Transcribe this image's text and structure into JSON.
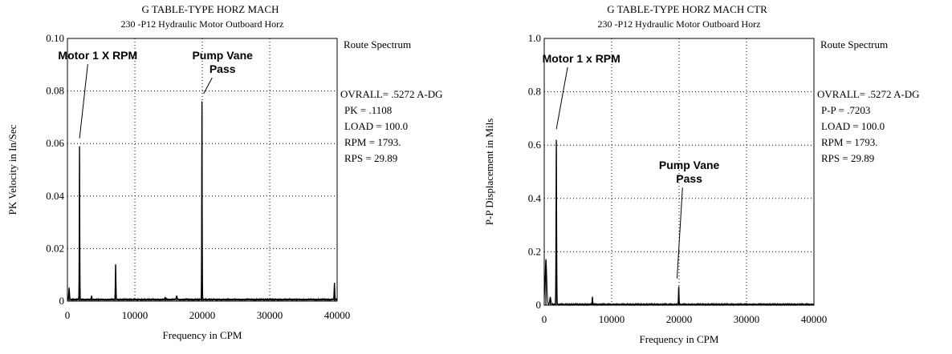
{
  "colors": {
    "line": "#000000",
    "grid": "#000000",
    "background": "#ffffff"
  },
  "chart_data": [
    {
      "type": "line",
      "title": "G      TABLE-TYPE HORZ MACH",
      "subtitle": "230        -P12   Hydraulic Motor Outboard Horz",
      "xlabel": "Frequency in CPM",
      "ylabel": "PK Velocity in In/Sec",
      "xlim": [
        0,
        40000
      ],
      "ylim": [
        0,
        0.1
      ],
      "xticks": [
        "0",
        "10000",
        "20000",
        "30000",
        "40000"
      ],
      "yticks": [
        "0",
        "0.02",
        "0.04",
        "0.06",
        "0.08",
        "0.10"
      ],
      "grid": "dotted",
      "side_header": "Route Spectrum",
      "side_info": [
        "OVRALL=  .5272 A-DG",
        "PK  =  .1108",
        "LOAD = 100.0",
        "RPM =  1793.",
        "RPS =  29.89"
      ],
      "annotations": [
        {
          "lines": [
            "Motor 1 X RPM"
          ],
          "x": 4500,
          "y": 0.092,
          "arrow_to": [
            1800,
            0.062
          ]
        },
        {
          "lines": [
            "Pump Vane",
            "Pass"
          ],
          "x": 23000,
          "y": 0.092,
          "arrow_to": [
            20200,
            0.079
          ]
        }
      ],
      "peaks": [
        {
          "x": 250,
          "y": 0.005,
          "w": 220
        },
        {
          "x": 1793,
          "y": 0.059,
          "w": 130
        },
        {
          "x": 3586,
          "y": 0.002,
          "w": 200
        },
        {
          "x": 7150,
          "y": 0.014,
          "w": 160
        },
        {
          "x": 14500,
          "y": 0.0015,
          "w": 300
        },
        {
          "x": 16200,
          "y": 0.002,
          "w": 300
        },
        {
          "x": 19950,
          "y": 0.076,
          "w": 130
        },
        {
          "x": 39600,
          "y": 0.007,
          "w": 180
        }
      ],
      "noise_floor": 0.0006
    },
    {
      "type": "line",
      "title": "G      TABLE-TYPE HORZ MACH CTR",
      "subtitle": "230        -P12   Hydraulic Motor Outboard Horz",
      "xlabel": "Frequency in CPM",
      "ylabel": "P-P Displacement in Mils",
      "xlim": [
        0,
        40000
      ],
      "ylim": [
        0,
        1.0
      ],
      "xticks": [
        "0",
        "10000",
        "20000",
        "30000",
        "40000"
      ],
      "yticks": [
        "0",
        "0.2",
        "0.4",
        "0.6",
        "0.8",
        "1.0"
      ],
      "grid": "dotted",
      "side_header": "Route Spectrum",
      "side_info": [
        "OVRALL=  .5272 A-DG",
        "P-P = .7203",
        "LOAD = 100.0",
        "RPM =  1793.",
        "RPS =  29.89"
      ],
      "annotations": [
        {
          "lines": [
            "Motor 1 x RPM"
          ],
          "x": 5500,
          "y": 0.91,
          "arrow_to": [
            1800,
            0.66
          ]
        },
        {
          "lines": [
            "Pump Vane",
            "Pass"
          ],
          "x": 21500,
          "y": 0.51,
          "arrow_to": [
            19700,
            0.1
          ]
        }
      ],
      "peaks": [
        {
          "x": 250,
          "y": 0.17,
          "w": 350
        },
        {
          "x": 900,
          "y": 0.03,
          "w": 300
        },
        {
          "x": 1793,
          "y": 0.62,
          "w": 150
        },
        {
          "x": 7150,
          "y": 0.03,
          "w": 160
        },
        {
          "x": 19950,
          "y": 0.07,
          "w": 150
        }
      ],
      "noise_floor": 0.003
    }
  ]
}
